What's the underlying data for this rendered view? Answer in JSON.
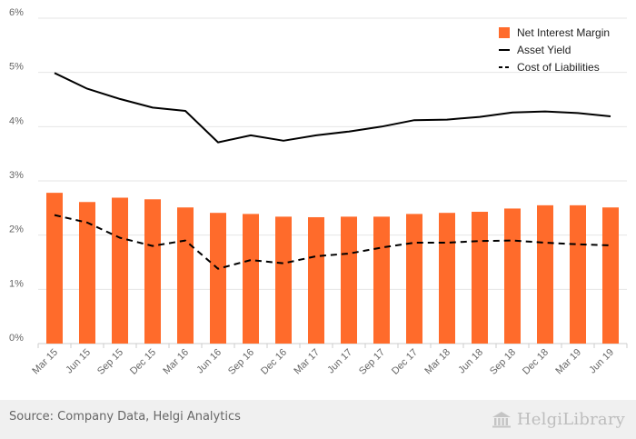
{
  "chart_data": {
    "type": "bar",
    "categories": [
      "Mar 15",
      "Jun 15",
      "Sep 15",
      "Dec 15",
      "Mar 16",
      "Jun 16",
      "Sep 16",
      "Dec 16",
      "Mar 17",
      "Jun 17",
      "Sep 17",
      "Dec 17",
      "Mar 18",
      "Jun 18",
      "Sep 18",
      "Dec 18",
      "Mar 19",
      "Jun 19"
    ],
    "series": [
      {
        "name": "Net Interest Margin",
        "kind": "bar",
        "color": "#ff6b2b",
        "values": [
          2.78,
          2.61,
          2.69,
          2.66,
          2.51,
          2.41,
          2.39,
          2.34,
          2.33,
          2.34,
          2.34,
          2.39,
          2.41,
          2.43,
          2.49,
          2.55,
          2.55,
          2.51
        ]
      },
      {
        "name": "Asset Yield",
        "kind": "line",
        "style": "solid",
        "color": "#000000",
        "values": [
          4.99,
          4.7,
          4.51,
          4.35,
          4.29,
          3.71,
          3.84,
          3.74,
          3.84,
          3.91,
          4.0,
          4.12,
          4.13,
          4.18,
          4.26,
          4.28,
          4.25,
          4.19
        ]
      },
      {
        "name": "Cost of Liabilities",
        "kind": "line",
        "style": "dashed",
        "color": "#000000",
        "values": [
          2.37,
          2.23,
          1.95,
          1.8,
          1.9,
          1.38,
          1.54,
          1.48,
          1.61,
          1.66,
          1.77,
          1.86,
          1.86,
          1.89,
          1.9,
          1.86,
          1.83,
          1.81
        ]
      }
    ],
    "ylim": [
      0,
      6
    ],
    "yticks": [
      "0%",
      "1%",
      "2%",
      "3%",
      "4%",
      "5%",
      "6%"
    ],
    "grid": true,
    "legend_position": "top-right"
  },
  "footer": {
    "source": "Source: Company Data, Helgi Analytics",
    "logo_text": "HelgiLibrary"
  },
  "colors": {
    "grid": "#e6e6e6",
    "axis": "#cccccc",
    "footer_bg": "#f0f0f0"
  }
}
